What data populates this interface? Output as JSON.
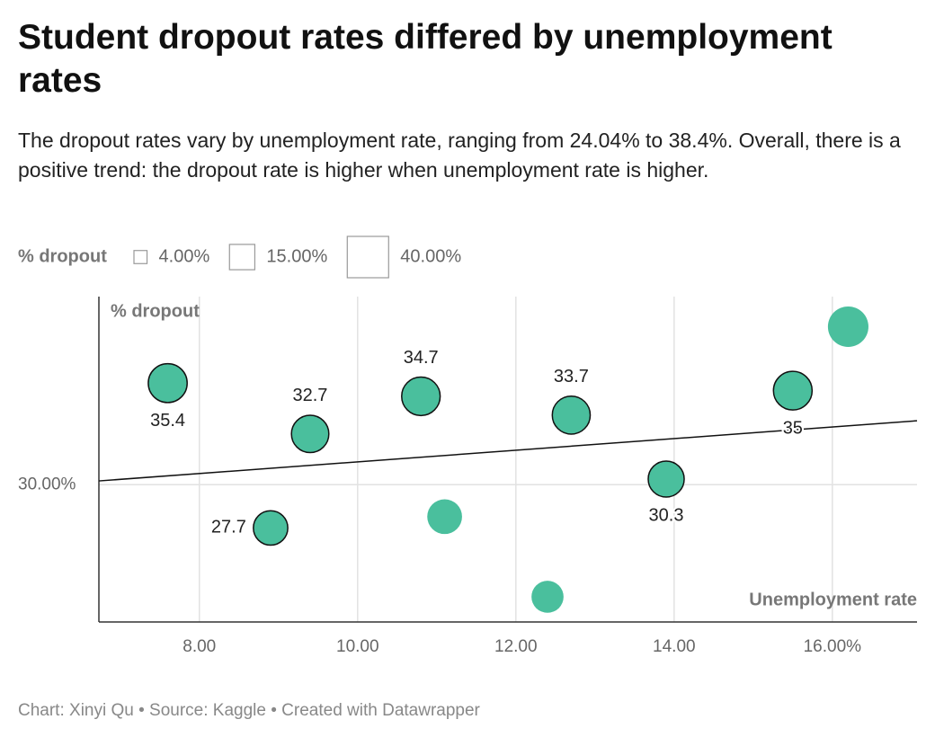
{
  "chart_data": {
    "type": "scatter",
    "title": "Student dropout rates differed by unemployment rates",
    "subtitle": "The dropout rates vary by unemployment rate, ranging from 24.04% to 38.4%. Overall, there is a positive trend: the dropout rate is higher when unemployment rate is higher.",
    "x_label": "Unemployment rate",
    "y_label": "% dropout",
    "size_legend": {
      "title": "% dropout",
      "sizes": [
        {
          "value": 4,
          "label": "4.00%"
        },
        {
          "value": 15,
          "label": "15.00%"
        },
        {
          "value": 40,
          "label": "40.00%"
        }
      ]
    },
    "x": [
      7.6,
      8.9,
      9.4,
      10.8,
      11.1,
      12.4,
      12.7,
      13.9,
      15.5,
      16.2
    ],
    "values": [
      35.4,
      27.7,
      32.7,
      34.7,
      28.3,
      24.04,
      33.7,
      30.3,
      35,
      38.4
    ],
    "show_label": [
      true,
      true,
      true,
      true,
      false,
      false,
      true,
      true,
      true,
      false
    ],
    "color": "#4abf9d",
    "trend_line": {
      "x": [
        6.73,
        17.07
      ],
      "y": [
        30.2,
        33.4
      ]
    },
    "xlim": [
      6.73,
      17.07
    ],
    "ylim": [
      22.7,
      40
    ],
    "xticks": [
      {
        "value": 8,
        "label": "8.00"
      },
      {
        "value": 10,
        "label": "10.00"
      },
      {
        "value": 12,
        "label": "12.00"
      },
      {
        "value": 14,
        "label": "14.00"
      },
      {
        "value": 16,
        "label": "16.00%"
      }
    ],
    "yticks": [
      {
        "value": 30,
        "label": "30.00%"
      }
    ],
    "grid": true,
    "footer": "Chart: Xinyi Qu • Source: Kaggle • Created with Datawrapper"
  }
}
